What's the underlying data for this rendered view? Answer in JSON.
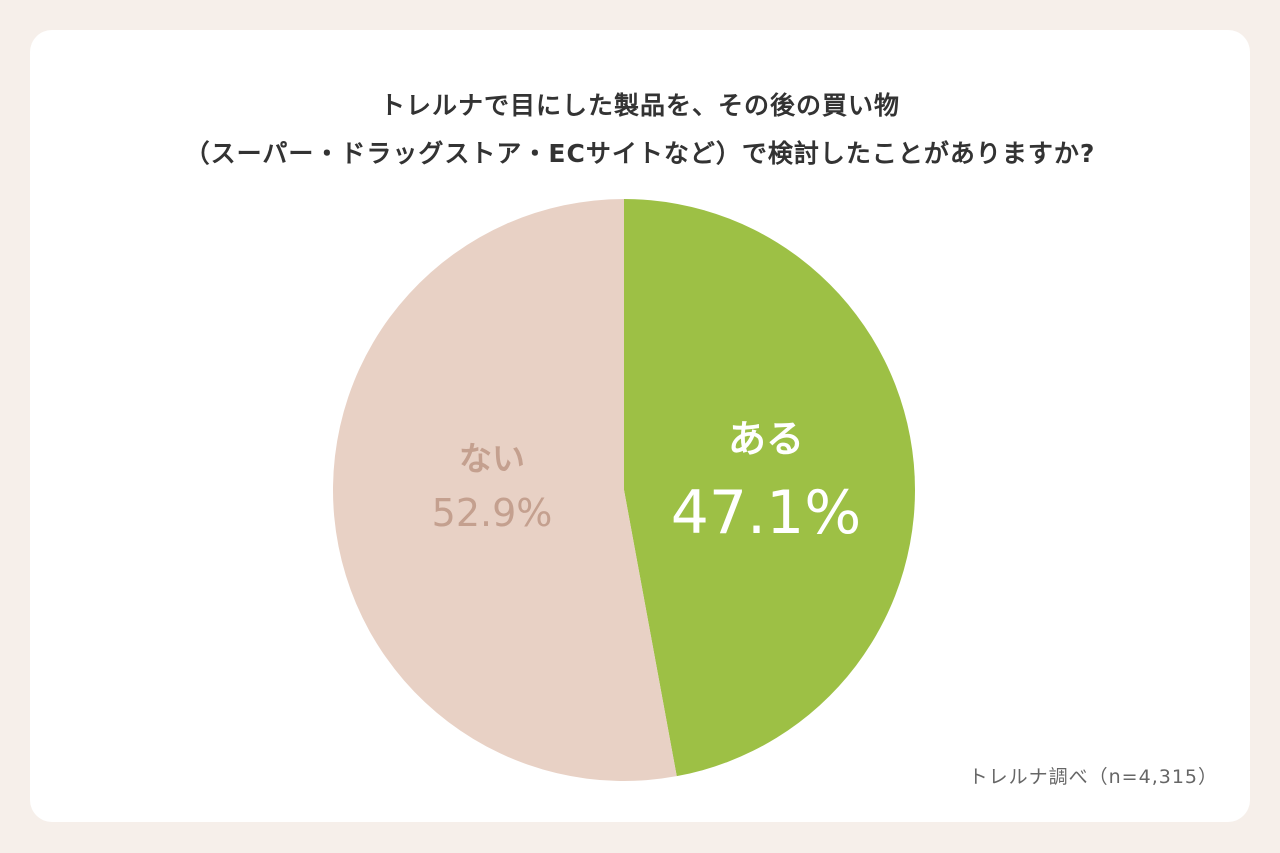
{
  "chart_data": {
    "type": "pie",
    "title_lines": [
      "トレルナで目にした製品を、その後の買い物",
      "（スーパー・ドラッグストア・ECサイトなど）で検討したことがありますか?"
    ],
    "slices": [
      {
        "label": "ある",
        "value": 47.1,
        "value_text": "47.1%",
        "color": "#9dc045",
        "label_color": "#ffffff"
      },
      {
        "label": "ない",
        "value": 52.9,
        "value_text": "52.9%",
        "color": "#e8d1c5",
        "label_color": "#c4a08f"
      }
    ],
    "source": "トレルナ調べ（n=4,315）"
  }
}
